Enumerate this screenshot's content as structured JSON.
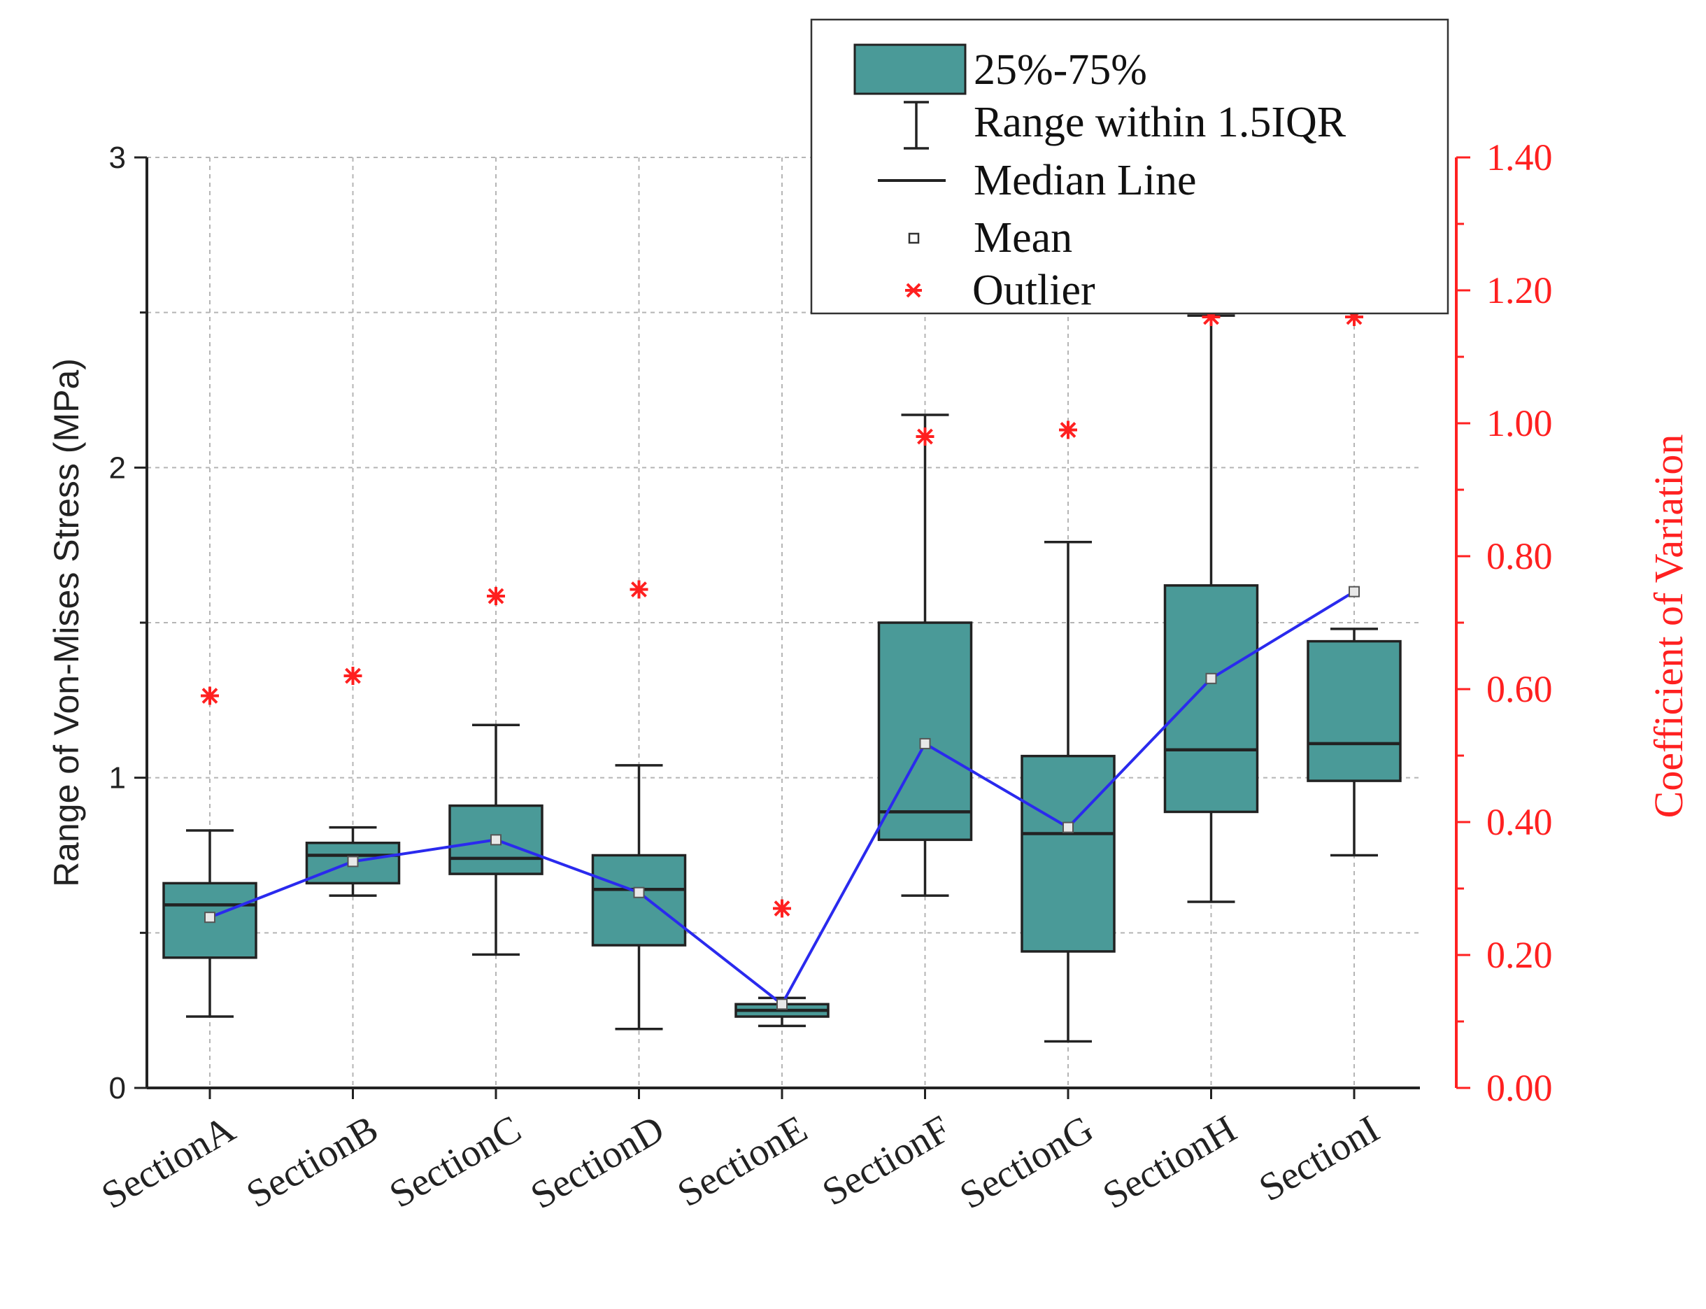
{
  "chart_data": {
    "type": "box",
    "categories": [
      "SectionA",
      "SectionB",
      "SectionC",
      "SectionD",
      "SectionE",
      "SectionF",
      "SectionG",
      "SectionH",
      "SectionI"
    ],
    "boxes": [
      {
        "whisker_low": 0.23,
        "q1": 0.42,
        "median": 0.59,
        "q3": 0.66,
        "whisker_high": 0.83,
        "mean": 0.55
      },
      {
        "whisker_low": 0.62,
        "q1": 0.66,
        "median": 0.75,
        "q3": 0.79,
        "whisker_high": 0.84,
        "mean": 0.73
      },
      {
        "whisker_low": 0.43,
        "q1": 0.69,
        "median": 0.74,
        "q3": 0.91,
        "whisker_high": 1.17,
        "mean": 0.8
      },
      {
        "whisker_low": 0.19,
        "q1": 0.46,
        "median": 0.64,
        "q3": 0.75,
        "whisker_high": 1.04,
        "mean": 0.63
      },
      {
        "whisker_low": 0.2,
        "q1": 0.23,
        "median": 0.25,
        "q3": 0.27,
        "whisker_high": 0.29,
        "mean": 0.27
      },
      {
        "whisker_low": 0.62,
        "q1": 0.8,
        "median": 0.89,
        "q3": 1.5,
        "whisker_high": 2.17,
        "mean": 1.11
      },
      {
        "whisker_low": 0.15,
        "q1": 0.44,
        "median": 0.82,
        "q3": 1.07,
        "whisker_high": 1.76,
        "mean": 0.84
      },
      {
        "whisker_low": 0.6,
        "q1": 0.89,
        "median": 1.09,
        "q3": 1.62,
        "whisker_high": 2.49,
        "mean": 1.32
      },
      {
        "whisker_low": 0.75,
        "q1": 0.99,
        "median": 1.11,
        "q3": 1.44,
        "whisker_high": 1.48,
        "mean": 1.6
      }
    ],
    "outliers_cv": [
      0.59,
      0.62,
      0.74,
      0.75,
      0.27,
      0.98,
      0.99,
      1.16,
      1.16
    ],
    "mean_line_color": "#2a2aee",
    "box_fill_color": "#4a9a98",
    "outlier_color": "#ff2020",
    "ylabel": "Range of Von-Mises Stress  (MPa)",
    "ylabel_right": "Coefficient of Variation",
    "ylim": [
      0,
      3
    ],
    "ylim_right": [
      0,
      1.4
    ],
    "yticks": [
      "0",
      "1",
      "2",
      "3"
    ],
    "yticks_right": [
      "0.00",
      "0.20",
      "0.40",
      "0.60",
      "0.80",
      "1.00",
      "1.20",
      "1.40"
    ],
    "grid": true,
    "legend_position": "top-right",
    "legend": [
      {
        "key": "box",
        "label": "25%-75%"
      },
      {
        "key": "range",
        "label": "Range within 1.5IQR"
      },
      {
        "key": "median",
        "label": "Median Line"
      },
      {
        "key": "mean",
        "label": "Mean"
      },
      {
        "key": "outlier",
        "label": "Outlier"
      }
    ]
  }
}
